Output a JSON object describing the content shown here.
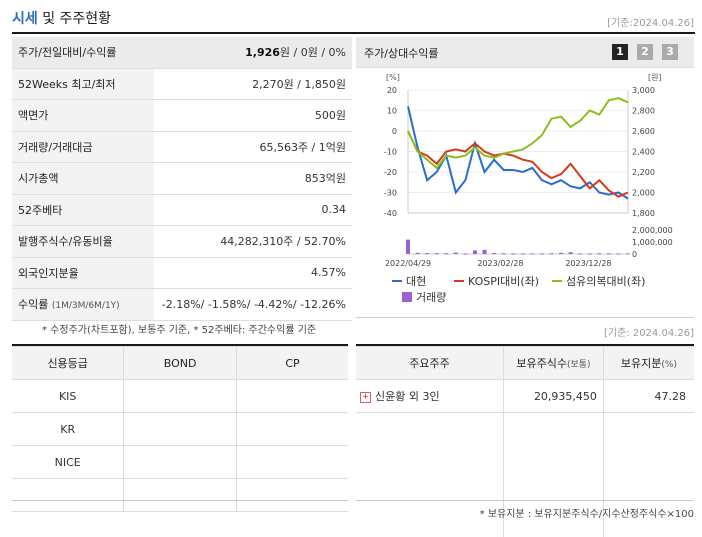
{
  "header": {
    "title_accent": "시세",
    "title_rest": " 및 주주현황",
    "date": "[기준:2024.04.26]"
  },
  "info_rows": [
    {
      "label": "주가/전일대비/수익률",
      "value_bold": "1,926",
      "value_rest": "원 / 0원 / 0%"
    },
    {
      "label": "52Weeks 최고/최저",
      "value": "2,270원 / 1,850원"
    },
    {
      "label": "액면가",
      "value": "500원"
    },
    {
      "label": "거래량/거래대금",
      "value": "65,563주 / 1억원"
    },
    {
      "label": "시가총액",
      "value": "853억원"
    },
    {
      "label": "52주베타",
      "value": "0.34"
    },
    {
      "label": "발행주식수/유동비율",
      "value": "44,282,310주 / 52.70%"
    },
    {
      "label": "외국인지분율",
      "value": "4.57%"
    }
  ],
  "returns": {
    "label": "수익률",
    "label_small": "(1M/3M/6M/1Y)",
    "value": "-2.18%/ -1.58%/ -4.42%/ -12.26%"
  },
  "note1": "* 수정주가(차트포함), 보통주 기준, * 52주베타: 주간수익률 기준",
  "chart_panel": {
    "title": "주가/상대수익률",
    "pages": [
      "1",
      "2",
      "3"
    ]
  },
  "chart_data": {
    "type": "line",
    "y_left_unit": "[%]",
    "y_right_unit": "[원]",
    "y_left_ticks": [
      "20",
      "10",
      "0",
      "-10",
      "-20",
      "-30",
      "-40"
    ],
    "y_right_ticks": [
      "3,000",
      "2,800",
      "2,600",
      "2,400",
      "2,200",
      "2,000",
      "1,800"
    ],
    "volume_ticks": [
      "2,000,000",
      "1,000,000",
      "0"
    ],
    "x_ticks": [
      "2022/04/29",
      "2023/02/28",
      "2023/12/28"
    ],
    "ylim_left": [
      -40,
      20
    ],
    "volume_max": 2000000,
    "series": [
      {
        "name": "대현",
        "color": "#2a6bd1",
        "axis": "left",
        "values": [
          12,
          -8,
          -24,
          -20,
          -12,
          -30,
          -24,
          -6,
          -20,
          -14,
          -19,
          -19,
          -20,
          -18,
          -24,
          -26,
          -24,
          -27,
          -28,
          -25,
          -30,
          -31,
          -30,
          -33
        ]
      },
      {
        "name": "KOSPI대비(좌)",
        "color": "#d43a1a",
        "axis": "left",
        "values": [
          0,
          -10,
          -12,
          -16,
          -10,
          -9,
          -10,
          -6,
          -10,
          -12,
          -11,
          -12,
          -14,
          -15,
          -20,
          -23,
          -21,
          -16,
          -22,
          -28,
          -24,
          -29,
          -32,
          -30
        ]
      },
      {
        "name": "섬유의복대비(좌)",
        "color": "#8bbf1c",
        "axis": "left",
        "values": [
          0,
          -10,
          -14,
          -18,
          -12,
          -13,
          -12,
          -8,
          -12,
          -13,
          -11,
          -10,
          -9,
          -6,
          -2,
          6,
          7,
          2,
          5,
          10,
          8,
          15,
          16,
          14
        ]
      }
    ],
    "volume_legend": "거래량",
    "volume_color": "#9a63d4",
    "volume": [
      1200000,
      100000,
      80000,
      60000,
      60000,
      120000,
      50000,
      300000,
      350000,
      80000,
      60000,
      50000,
      40000,
      40000,
      50000,
      60000,
      100000,
      150000,
      40000,
      40000,
      60000,
      50000,
      40000,
      50000
    ]
  },
  "date2": "[기준: 2024.04.26]",
  "credit_table": {
    "headers": [
      "신용등급",
      "BOND",
      "CP"
    ],
    "rows": [
      [
        "KIS",
        "",
        ""
      ],
      [
        "KR",
        "",
        ""
      ],
      [
        "NICE",
        "",
        ""
      ],
      [
        "",
        "",
        ""
      ]
    ]
  },
  "holder_table": {
    "headers": [
      "주요주주",
      "보유주식수",
      "(보통)",
      "보유지분",
      "(%)"
    ],
    "rows": [
      {
        "name": "신윤황 외 3인",
        "shares": "20,935,450",
        "pct": "47.28"
      }
    ]
  },
  "footnote": "* 보유지분 : 보유지분주식수/지수산정주식수×100"
}
